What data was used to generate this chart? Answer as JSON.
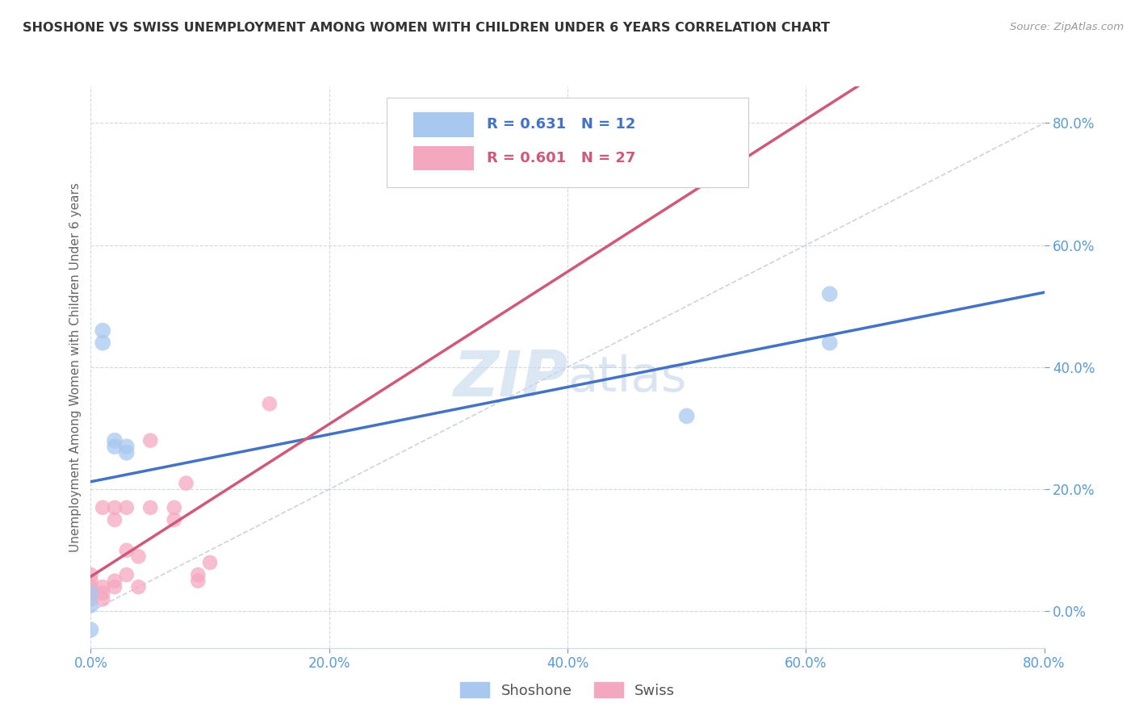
{
  "title": "SHOSHONE VS SWISS UNEMPLOYMENT AMONG WOMEN WITH CHILDREN UNDER 6 YEARS CORRELATION CHART",
  "source": "Source: ZipAtlas.com",
  "ylabel": "Unemployment Among Women with Children Under 6 years",
  "xmin": 0.0,
  "xmax": 0.8,
  "ymin": -0.06,
  "ymax": 0.86,
  "shoshone_R": "0.631",
  "shoshone_N": "12",
  "swiss_R": "0.601",
  "swiss_N": "27",
  "shoshone_color": "#a8c8f0",
  "swiss_color": "#f4a8c0",
  "shoshone_line_color": "#4472c4",
  "swiss_line_color": "#d05878",
  "legend_shoshone_label": "Shoshone",
  "legend_swiss_label": "Swiss",
  "watermark_zip": "ZIP",
  "watermark_atlas": "atlas",
  "shoshone_x": [
    0.0,
    0.0,
    0.0,
    0.01,
    0.01,
    0.02,
    0.02,
    0.03,
    0.03,
    0.5,
    0.62,
    0.62
  ],
  "shoshone_y": [
    0.01,
    0.03,
    -0.03,
    0.44,
    0.46,
    0.27,
    0.28,
    0.26,
    0.27,
    0.32,
    0.44,
    0.52
  ],
  "swiss_x": [
    0.0,
    0.0,
    0.0,
    0.0,
    0.0,
    0.01,
    0.01,
    0.01,
    0.01,
    0.02,
    0.02,
    0.02,
    0.02,
    0.03,
    0.03,
    0.03,
    0.04,
    0.04,
    0.05,
    0.05,
    0.07,
    0.07,
    0.08,
    0.09,
    0.09,
    0.1,
    0.15
  ],
  "swiss_y": [
    0.02,
    0.03,
    0.04,
    0.05,
    0.06,
    0.02,
    0.03,
    0.04,
    0.17,
    0.04,
    0.05,
    0.15,
    0.17,
    0.06,
    0.1,
    0.17,
    0.04,
    0.09,
    0.17,
    0.28,
    0.15,
    0.17,
    0.21,
    0.05,
    0.06,
    0.08,
    0.34
  ],
  "ytick_positions": [
    0.0,
    0.2,
    0.4,
    0.6,
    0.8
  ],
  "xtick_positions": [
    0.0,
    0.2,
    0.4,
    0.6,
    0.8
  ],
  "tick_labels": [
    "0.0%",
    "20.0%",
    "40.0%",
    "60.0%",
    "80.0%"
  ],
  "background_color": "#ffffff",
  "grid_color": "#d0d8e8",
  "title_color": "#333333",
  "axis_tick_color": "#5b9bd5",
  "ref_line_color": "#c0c8d8"
}
